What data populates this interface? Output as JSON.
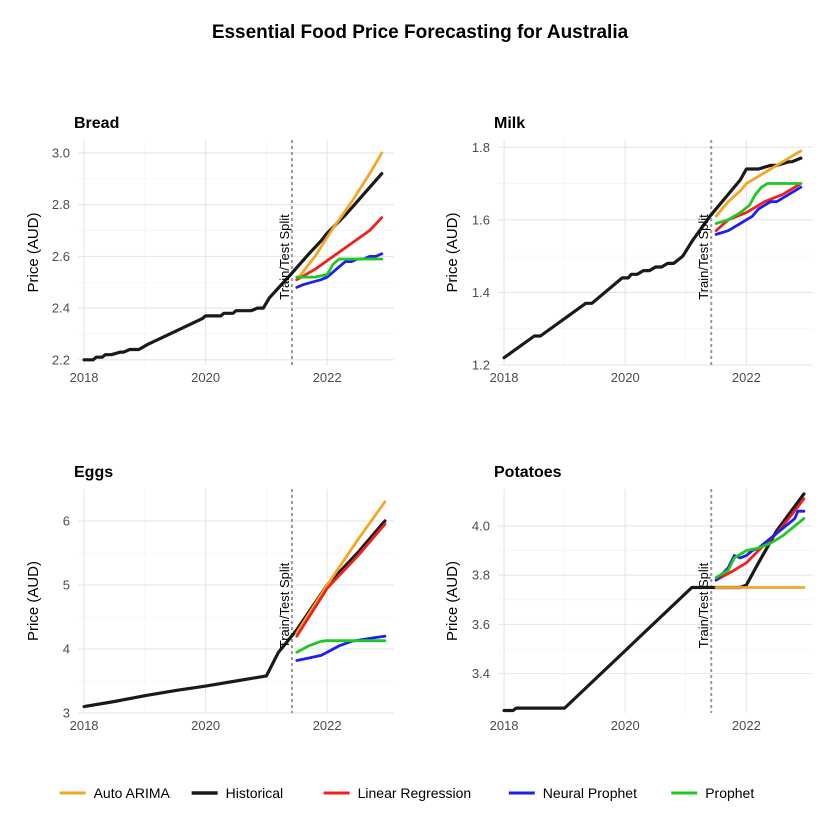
{
  "title": "Essential Food Price Forecasting for Australia",
  "colors": {
    "Auto ARIMA": "#F5A623",
    "Historical": "#1a1a1a",
    "Linear Regression": "#F0201F",
    "Neural Prophet": "#1E1EF0",
    "Prophet": "#22C822",
    "split_line": "#999999"
  },
  "legend": [
    "Auto ARIMA",
    "Historical",
    "Linear Regression",
    "Neural Prophet",
    "Prophet"
  ],
  "chart_data": [
    {
      "type": "line",
      "title": "Bread",
      "ylabel": "Price (AUD)",
      "xlabel": "",
      "xlim": [
        2017.9,
        2023.1
      ],
      "ylim": [
        2.18,
        3.05
      ],
      "x_ticks": [
        2018,
        2020,
        2022
      ],
      "x_tick_labels": [
        "2018",
        "2020",
        "2022"
      ],
      "y_ticks": [
        2.2,
        2.4,
        2.6,
        2.8,
        3.0
      ],
      "y_tick_labels": [
        "2.2",
        "2.4",
        "2.6",
        "2.8",
        "3.0"
      ],
      "split_x": 2021.42,
      "split_label": "Train/Test Split",
      "series": [
        {
          "name": "Historical",
          "x": [
            2018.0,
            2018.15,
            2018.2,
            2018.3,
            2018.35,
            2018.45,
            2018.6,
            2018.65,
            2018.75,
            2018.8,
            2018.9,
            2019.05,
            2019.5,
            2019.95,
            2020.0,
            2020.25,
            2020.3,
            2020.45,
            2020.5,
            2020.75,
            2020.85,
            2020.95,
            2021.05,
            2021.4,
            2021.7,
            2021.9,
            2022.0,
            2022.3,
            2022.6,
            2022.9
          ],
          "y": [
            2.2,
            2.2,
            2.21,
            2.21,
            2.22,
            2.22,
            2.23,
            2.23,
            2.24,
            2.24,
            2.24,
            2.26,
            2.31,
            2.36,
            2.37,
            2.37,
            2.38,
            2.38,
            2.39,
            2.39,
            2.4,
            2.4,
            2.44,
            2.53,
            2.61,
            2.66,
            2.69,
            2.76,
            2.84,
            2.92
          ]
        },
        {
          "name": "Auto ARIMA",
          "x": [
            2021.5,
            2021.8,
            2022.1,
            2022.4,
            2022.7,
            2022.9
          ],
          "y": [
            2.51,
            2.6,
            2.71,
            2.81,
            2.92,
            3.0
          ]
        },
        {
          "name": "Linear Regression",
          "x": [
            2021.5,
            2021.8,
            2022.1,
            2022.4,
            2022.7,
            2022.9
          ],
          "y": [
            2.51,
            2.55,
            2.6,
            2.65,
            2.7,
            2.75
          ]
        },
        {
          "name": "Neural Prophet",
          "x": [
            2021.5,
            2021.6,
            2021.75,
            2021.9,
            2022.0,
            2022.1,
            2022.2,
            2022.3,
            2022.4,
            2022.5,
            2022.6,
            2022.7,
            2022.8,
            2022.9
          ],
          "y": [
            2.48,
            2.49,
            2.5,
            2.51,
            2.52,
            2.54,
            2.56,
            2.58,
            2.58,
            2.59,
            2.59,
            2.6,
            2.6,
            2.61
          ]
        },
        {
          "name": "Prophet",
          "x": [
            2021.5,
            2021.8,
            2022.0,
            2022.1,
            2022.2,
            2022.9
          ],
          "y": [
            2.52,
            2.52,
            2.53,
            2.57,
            2.59,
            2.59
          ]
        }
      ]
    },
    {
      "type": "line",
      "title": "Milk",
      "ylabel": "Price (AUD)",
      "xlabel": "",
      "xlim": [
        2017.9,
        2023.1
      ],
      "ylim": [
        1.2,
        1.82
      ],
      "x_ticks": [
        2018,
        2020,
        2022
      ],
      "x_tick_labels": [
        "2018",
        "2020",
        "2022"
      ],
      "y_ticks": [
        1.2,
        1.4,
        1.6,
        1.8
      ],
      "y_tick_labels": [
        "1.2",
        "1.4",
        "1.6",
        "1.8"
      ],
      "split_x": 2021.42,
      "split_label": "Train/Test Split",
      "series": [
        {
          "name": "Historical",
          "x": [
            2018.0,
            2018.5,
            2018.6,
            2019.35,
            2019.45,
            2019.95,
            2020.05,
            2020.1,
            2020.2,
            2020.3,
            2020.4,
            2020.5,
            2020.6,
            2020.7,
            2020.8,
            2020.95,
            2021.1,
            2021.4,
            2021.7,
            2021.9,
            2022.0,
            2022.2,
            2022.4,
            2022.5,
            2022.7,
            2022.75,
            2022.9
          ],
          "y": [
            1.22,
            1.28,
            1.28,
            1.37,
            1.37,
            1.44,
            1.44,
            1.45,
            1.45,
            1.46,
            1.46,
            1.47,
            1.47,
            1.48,
            1.48,
            1.5,
            1.54,
            1.61,
            1.67,
            1.71,
            1.74,
            1.74,
            1.75,
            1.75,
            1.76,
            1.76,
            1.77
          ]
        },
        {
          "name": "Auto ARIMA",
          "x": [
            2021.5,
            2021.7,
            2021.9,
            2022.0,
            2022.2,
            2022.4,
            2022.6,
            2022.8,
            2022.9
          ],
          "y": [
            1.61,
            1.65,
            1.68,
            1.7,
            1.72,
            1.74,
            1.76,
            1.78,
            1.79
          ]
        },
        {
          "name": "Linear Regression",
          "x": [
            2021.5,
            2021.7,
            2022.0,
            2022.3,
            2022.6,
            2022.9
          ],
          "y": [
            1.57,
            1.6,
            1.62,
            1.65,
            1.67,
            1.7
          ]
        },
        {
          "name": "Neural Prophet",
          "x": [
            2021.5,
            2021.7,
            2021.9,
            2022.0,
            2022.1,
            2022.2,
            2022.3,
            2022.4,
            2022.5,
            2022.6,
            2022.7,
            2022.8,
            2022.9
          ],
          "y": [
            1.56,
            1.57,
            1.59,
            1.6,
            1.61,
            1.63,
            1.64,
            1.65,
            1.65,
            1.66,
            1.67,
            1.68,
            1.69
          ]
        },
        {
          "name": "Prophet",
          "x": [
            2021.5,
            2021.7,
            2021.9,
            2022.05,
            2022.15,
            2022.25,
            2022.35,
            2022.9
          ],
          "y": [
            1.59,
            1.6,
            1.62,
            1.64,
            1.67,
            1.69,
            1.7,
            1.7
          ]
        }
      ]
    },
    {
      "type": "line",
      "title": "Eggs",
      "ylabel": "Price (AUD)",
      "xlabel": "",
      "xlim": [
        2017.9,
        2023.1
      ],
      "ylim": [
        3.0,
        6.5
      ],
      "x_ticks": [
        2018,
        2020,
        2022
      ],
      "x_tick_labels": [
        "2018",
        "2020",
        "2022"
      ],
      "y_ticks": [
        3,
        4,
        5,
        6
      ],
      "y_tick_labels": [
        "3",
        "4",
        "5",
        "6"
      ],
      "split_x": 2021.42,
      "split_label": "Train/Test Split",
      "series": [
        {
          "name": "Historical",
          "x": [
            2018.0,
            2018.5,
            2019.0,
            2019.5,
            2020.0,
            2020.5,
            2021.0,
            2021.2,
            2021.5,
            2022.0,
            2022.5,
            2022.95
          ],
          "y": [
            3.1,
            3.18,
            3.27,
            3.35,
            3.42,
            3.5,
            3.58,
            3.95,
            4.3,
            5.0,
            5.5,
            6.0
          ]
        },
        {
          "name": "Auto ARIMA",
          "x": [
            2021.5,
            2022.0,
            2022.5,
            2022.95
          ],
          "y": [
            4.25,
            5.0,
            5.7,
            6.3
          ]
        },
        {
          "name": "Linear Regression",
          "x": [
            2021.5,
            2022.0,
            2022.5,
            2022.95
          ],
          "y": [
            4.2,
            4.95,
            5.45,
            5.95
          ]
        },
        {
          "name": "Neural Prophet",
          "x": [
            2021.5,
            2021.7,
            2021.9,
            2022.0,
            2022.2,
            2022.4,
            2022.6,
            2022.8,
            2022.95
          ],
          "y": [
            3.82,
            3.86,
            3.9,
            3.95,
            4.05,
            4.12,
            4.15,
            4.18,
            4.2
          ]
        },
        {
          "name": "Prophet",
          "x": [
            2021.5,
            2021.7,
            2021.9,
            2022.0,
            2022.95
          ],
          "y": [
            3.95,
            4.05,
            4.12,
            4.13,
            4.13
          ]
        }
      ]
    },
    {
      "type": "line",
      "title": "Potatoes",
      "ylabel": "Price (AUD)",
      "xlabel": "",
      "xlim": [
        2017.9,
        2023.1
      ],
      "ylim": [
        3.24,
        4.15
      ],
      "x_ticks": [
        2018,
        2020,
        2022
      ],
      "x_tick_labels": [
        "2018",
        "2020",
        "2022"
      ],
      "y_ticks": [
        3.4,
        3.6,
        3.8,
        4.0
      ],
      "y_tick_labels": [
        "3.4",
        "3.6",
        "3.8",
        "4.0"
      ],
      "split_x": 2021.42,
      "split_label": "Train/Test Split",
      "series": [
        {
          "name": "Historical",
          "x": [
            2018.0,
            2018.15,
            2018.2,
            2019.0,
            2021.1,
            2021.2,
            2021.5,
            2021.9,
            2022.0,
            2022.2,
            2022.5,
            2022.95
          ],
          "y": [
            3.25,
            3.25,
            3.26,
            3.26,
            3.75,
            3.75,
            3.75,
            3.75,
            3.76,
            3.85,
            3.98,
            4.13
          ]
        },
        {
          "name": "Auto ARIMA",
          "x": [
            2021.5,
            2022.95
          ],
          "y": [
            3.75,
            3.75
          ]
        },
        {
          "name": "Linear Regression",
          "x": [
            2021.5,
            2021.8,
            2022.0,
            2022.2,
            2022.5,
            2022.7,
            2022.95
          ],
          "y": [
            3.78,
            3.82,
            3.85,
            3.9,
            3.97,
            4.03,
            4.11
          ]
        },
        {
          "name": "Neural Prophet",
          "x": [
            2021.5,
            2021.7,
            2021.8,
            2021.9,
            2022.0,
            2022.1,
            2022.2,
            2022.3,
            2022.4,
            2022.5,
            2022.6,
            2022.7,
            2022.8,
            2022.85,
            2022.95
          ],
          "y": [
            3.78,
            3.83,
            3.88,
            3.87,
            3.88,
            3.9,
            3.91,
            3.93,
            3.95,
            3.97,
            3.99,
            4.01,
            4.03,
            4.06,
            4.06
          ]
        },
        {
          "name": "Prophet",
          "x": [
            2021.5,
            2021.7,
            2021.8,
            2022.0,
            2022.2,
            2022.4,
            2022.6,
            2022.8,
            2022.95
          ],
          "y": [
            3.79,
            3.82,
            3.87,
            3.9,
            3.91,
            3.93,
            3.96,
            4.0,
            4.03
          ]
        }
      ]
    }
  ]
}
